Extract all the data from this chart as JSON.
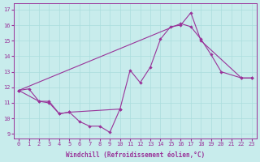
{
  "xlabel": "Windchill (Refroidissement éolien,°C)",
  "bg_color": "#c8ecec",
  "line_color": "#993399",
  "grid_color": "#aadddd",
  "xlim": [
    -0.5,
    23.5
  ],
  "ylim": [
    8.7,
    17.4
  ],
  "xticks": [
    0,
    1,
    2,
    3,
    4,
    5,
    6,
    7,
    8,
    9,
    10,
    11,
    12,
    13,
    14,
    15,
    16,
    17,
    18,
    19,
    20,
    21,
    22,
    23
  ],
  "yticks": [
    9,
    10,
    11,
    12,
    13,
    14,
    15,
    16,
    17
  ],
  "series": [
    {
      "x": [
        0,
        1,
        2,
        3,
        4,
        5,
        6,
        7,
        8,
        9,
        10
      ],
      "y": [
        11.8,
        11.9,
        11.1,
        11.1,
        10.3,
        10.4,
        9.8,
        9.5,
        9.5,
        9.1,
        10.6
      ]
    },
    {
      "x": [
        0,
        2,
        3,
        4,
        5,
        10,
        11,
        12,
        13,
        14,
        15,
        16,
        17,
        18,
        22,
        23
      ],
      "y": [
        11.8,
        11.1,
        11.0,
        10.3,
        10.4,
        10.6,
        13.1,
        12.3,
        13.3,
        15.1,
        15.9,
        16.0,
        16.8,
        15.0,
        12.6,
        12.6
      ]
    },
    {
      "x": [
        0,
        16,
        17,
        18,
        19,
        20,
        22,
        23
      ],
      "y": [
        11.8,
        16.1,
        15.9,
        15.1,
        14.1,
        13.0,
        12.6,
        12.6
      ]
    }
  ]
}
